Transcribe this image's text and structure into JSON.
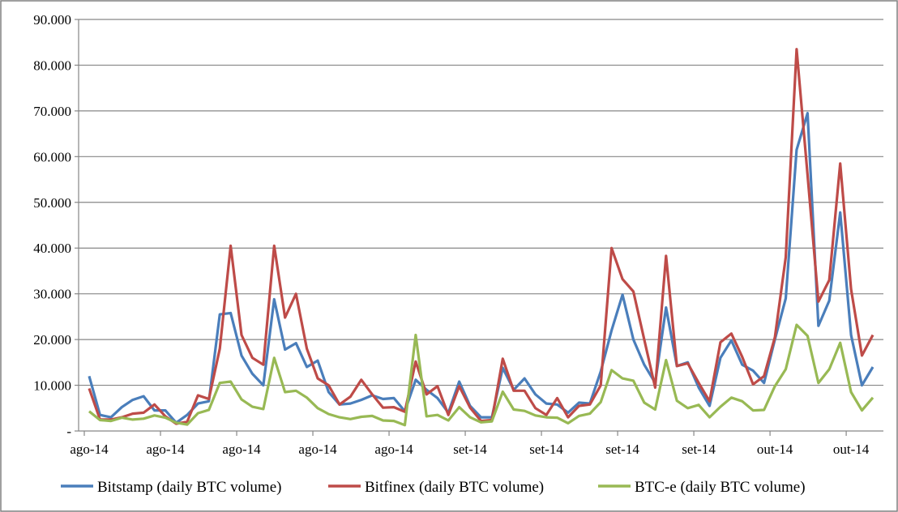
{
  "chart_data": {
    "type": "line",
    "title": "",
    "xlabel": "",
    "ylabel": "",
    "ylim": [
      0,
      90000
    ],
    "y_ticks": [
      "-",
      "10.000",
      "20.000",
      "30.000",
      "40.000",
      "50.000",
      "60.000",
      "70.000",
      "80.000",
      "90.000"
    ],
    "x_tick_labels": [
      "ago-14",
      "ago-14",
      "ago-14",
      "ago-14",
      "ago-14",
      "set-14",
      "set-14",
      "set-14",
      "set-14",
      "out-14",
      "out-14"
    ],
    "grid": "horizontal",
    "legend_position": "bottom",
    "series": [
      {
        "name": "Bitstamp (daily BTC volume)",
        "color": "#4a7ebb",
        "values": [
          12000,
          3500,
          3000,
          5200,
          6800,
          7600,
          4500,
          4500,
          1800,
          3500,
          6000,
          6500,
          25500,
          25800,
          16500,
          12500,
          10000,
          28800,
          17800,
          19200,
          14000,
          15400,
          8500,
          5800,
          6000,
          6800,
          7800,
          7000,
          7200,
          4300,
          11200,
          9000,
          7200,
          4000,
          10800,
          5500,
          3000,
          3000,
          13800,
          9000,
          11500,
          8000,
          6000,
          5800,
          4000,
          6200,
          6000,
          13000,
          22000,
          29800,
          20000,
          14500,
          10500,
          27000,
          14200,
          15000,
          9500,
          5500,
          16000,
          19800,
          14500,
          13200,
          10500,
          20000,
          29000,
          61500,
          69500,
          23000,
          28500,
          47800,
          21000,
          10000,
          14000
        ]
      },
      {
        "name": "Bitfinex (daily BTC volume)",
        "color": "#be4b48",
        "values": [
          9300,
          2500,
          2500,
          3000,
          3800,
          4000,
          5800,
          3200,
          1600,
          2000,
          7800,
          7000,
          18000,
          40500,
          21000,
          16000,
          14500,
          40500,
          24800,
          30000,
          18000,
          11500,
          10000,
          5800,
          7500,
          11200,
          8000,
          5100,
          5200,
          4200,
          15200,
          8000,
          9800,
          3500,
          9800,
          5100,
          2200,
          2400,
          15800,
          8800,
          8800,
          5000,
          3500,
          7200,
          3000,
          5500,
          5800,
          10000,
          40000,
          33200,
          30500,
          20000,
          9500,
          38300,
          14200,
          14800,
          10500,
          6500,
          19400,
          21300,
          16200,
          10200,
          12000,
          20500,
          38000,
          83500,
          56000,
          28300,
          33000,
          58500,
          31000,
          16500,
          21000
        ]
      },
      {
        "name": "BTC-e (daily BTC volume)",
        "color": "#98b954",
        "values": [
          4300,
          2400,
          2200,
          2900,
          2500,
          2700,
          3400,
          2900,
          1800,
          1400,
          3900,
          4600,
          10500,
          10800,
          6900,
          5300,
          4800,
          16000,
          8500,
          8800,
          7300,
          5000,
          3700,
          3000,
          2600,
          3100,
          3300,
          2300,
          2200,
          1300,
          21000,
          3200,
          3500,
          2300,
          5200,
          3000,
          1900,
          2100,
          8600,
          4700,
          4400,
          3400,
          3000,
          2900,
          1700,
          3300,
          3800,
          6300,
          13300,
          11500,
          11000,
          6200,
          4700,
          15500,
          6600,
          5000,
          5700,
          3000,
          5300,
          7300,
          6500,
          4500,
          4600,
          9800,
          13500,
          23200,
          20800,
          10500,
          13500,
          19300,
          8500,
          4500,
          7300
        ]
      }
    ]
  }
}
